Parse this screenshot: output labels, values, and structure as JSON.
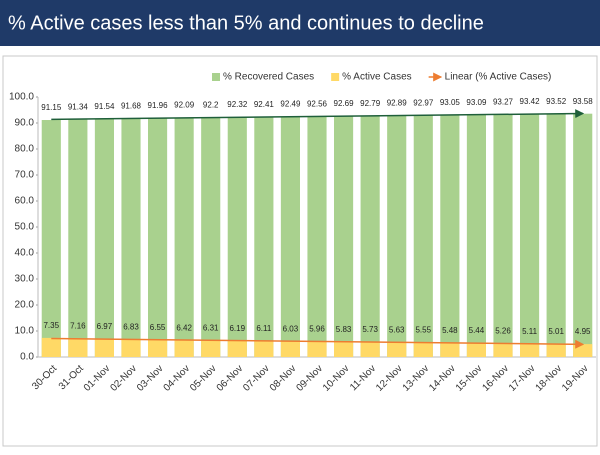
{
  "chart_data": {
    "type": "bar",
    "title": "% Active cases less than 5% and continues to decline",
    "categories": [
      "30-Oct",
      "31-Oct",
      "01-Nov",
      "02-Nov",
      "03-Nov",
      "04-Nov",
      "05-Nov",
      "06-Nov",
      "07-Nov",
      "08-Nov",
      "09-Nov",
      "10-Nov",
      "11-Nov",
      "12-Nov",
      "13-Nov",
      "14-Nov",
      "15-Nov",
      "16-Nov",
      "17-Nov",
      "18-Nov",
      "19-Nov"
    ],
    "series": [
      {
        "name": "% Recovered Cases",
        "color": "#a9d18e",
        "values": [
          91.15,
          91.34,
          91.54,
          91.68,
          91.96,
          92.09,
          92.2,
          92.32,
          92.41,
          92.49,
          92.56,
          92.69,
          92.79,
          92.89,
          92.97,
          93.05,
          93.09,
          93.27,
          93.42,
          93.52,
          93.58
        ]
      },
      {
        "name": "% Active Cases",
        "color": "#ffd966",
        "values": [
          7.35,
          7.16,
          6.97,
          6.83,
          6.55,
          6.42,
          6.31,
          6.19,
          6.11,
          6.03,
          5.96,
          5.83,
          5.73,
          5.63,
          5.55,
          5.48,
          5.44,
          5.26,
          5.11,
          5.01,
          4.95
        ]
      }
    ],
    "trendline": {
      "name": "Linear (% Active Cases)",
      "color": "#ed7d31"
    },
    "ylim": [
      0,
      100
    ],
    "yticks": [
      {
        "value": 0,
        "label": "0.0"
      },
      {
        "value": 10,
        "label": "10.0"
      },
      {
        "value": 20,
        "label": "20.0"
      },
      {
        "value": 30,
        "label": "30.0"
      },
      {
        "value": 40,
        "label": "40.0"
      },
      {
        "value": 50,
        "label": "50.0"
      },
      {
        "value": 60,
        "label": "60.0"
      },
      {
        "value": 70,
        "label": "70.0"
      },
      {
        "value": 80,
        "label": "80.0"
      },
      {
        "value": 90,
        "label": "90.0"
      },
      {
        "value": 100,
        "label": "100.0"
      }
    ]
  }
}
